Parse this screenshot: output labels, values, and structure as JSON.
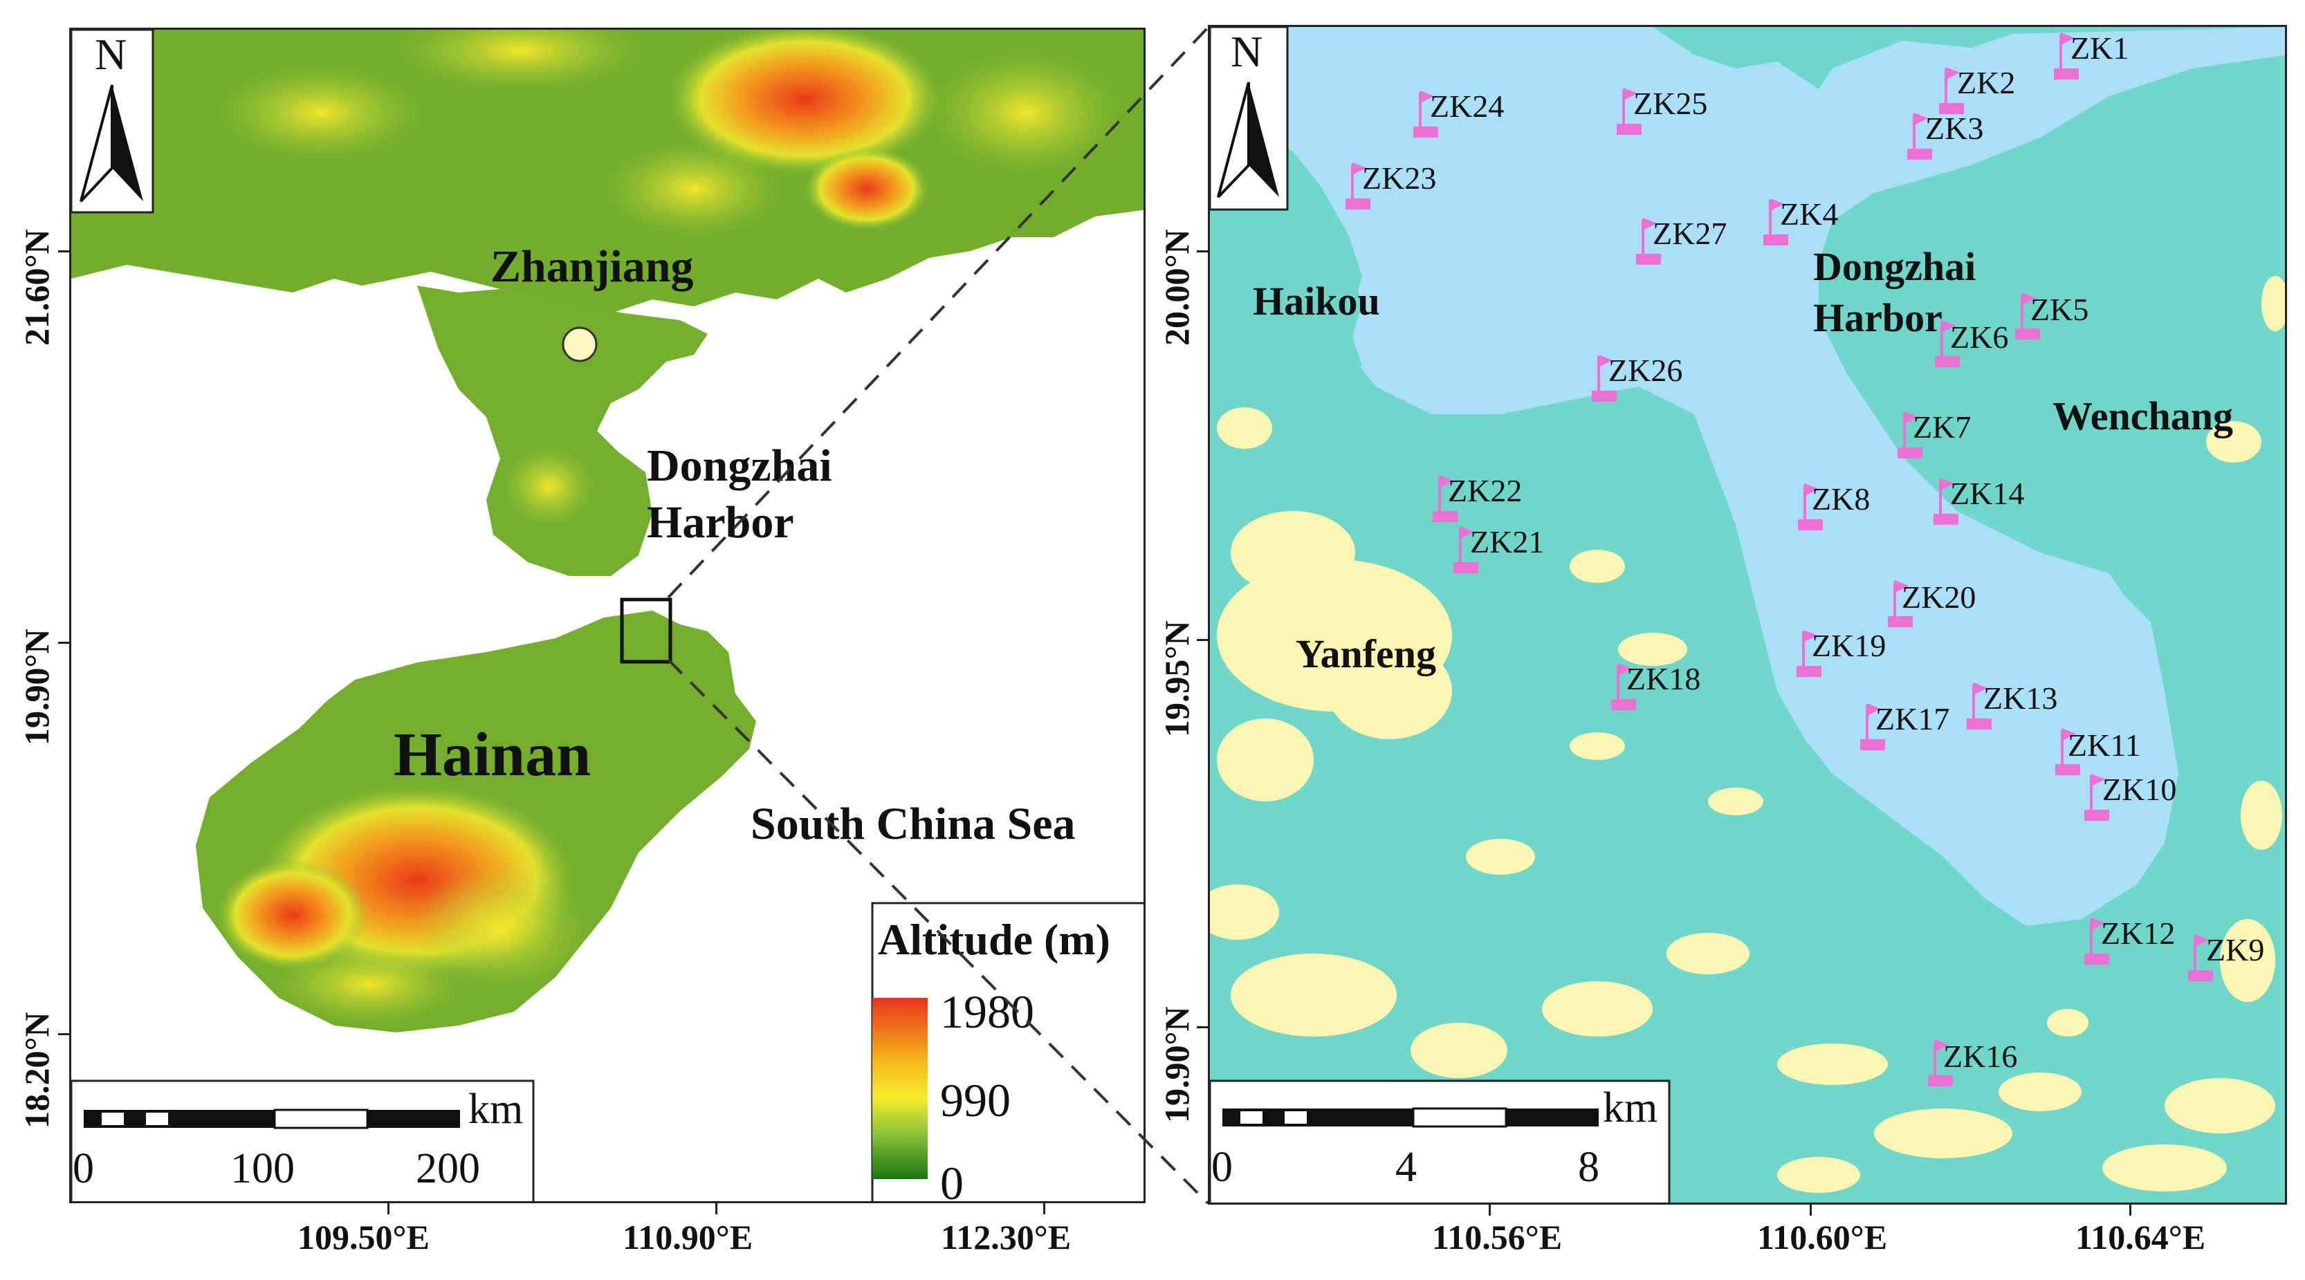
{
  "left_map": {
    "north_label": "N",
    "places": {
      "zhanjiang": "Zhanjiang",
      "dongzhai_1": "Dongzhai",
      "dongzhai_2": "Harbor",
      "hainan": "Hainan",
      "south_china_sea": "South China Sea"
    },
    "lat_labels": [
      "21.60°N",
      "19.90°N",
      "18.20°N"
    ],
    "lon_labels": [
      "109.50°E",
      "110.90°E",
      "112.30°E"
    ],
    "scale": {
      "unit": "km",
      "ticks": [
        "0",
        "100",
        "200"
      ]
    },
    "legend": {
      "title": "Altitude (m)",
      "max": "1980",
      "mid": "990",
      "min": "0"
    },
    "colors": {
      "land": "#6fae2e",
      "sea": "#ffffff",
      "high": "#f0401a",
      "mid": "#f4e61c",
      "low": "#1f7a14",
      "city_marker": "#fff6c0"
    }
  },
  "right_map": {
    "north_label": "N",
    "places": {
      "haikou": "Haikou",
      "dongzhai_1": "Dongzhai",
      "dongzhai_2": "Harbor",
      "wenchang": "Wenchang",
      "yanfeng": "Yanfeng"
    },
    "lat_labels": [
      "20.00°N",
      "19.95°N",
      "19.90°N"
    ],
    "lon_labels": [
      "110.56°E",
      "110.60°E",
      "110.64°E"
    ],
    "scale": {
      "unit": "km",
      "ticks": [
        "0",
        "4",
        "8"
      ]
    },
    "boreholes": [
      "ZK1",
      "ZK2",
      "ZK3",
      "ZK4",
      "ZK5",
      "ZK6",
      "ZK7",
      "ZK8",
      "ZK9",
      "ZK10",
      "ZK11",
      "ZK12",
      "ZK13",
      "ZK14",
      "ZK16",
      "ZK17",
      "ZK18",
      "ZK19",
      "ZK20",
      "ZK21",
      "ZK22",
      "ZK23",
      "ZK24",
      "ZK25",
      "ZK26",
      "ZK27"
    ],
    "colors": {
      "land": "#6fd6c9",
      "water": "#a9defa",
      "patch": "#fdf6b2",
      "flag": "#ee6fd6"
    }
  }
}
